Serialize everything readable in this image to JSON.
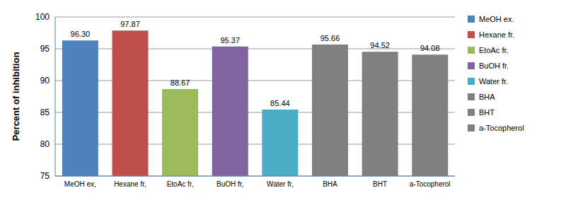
{
  "chart_data": {
    "type": "bar",
    "y_label": "Percent of inhibition",
    "categories": [
      "MeOH ex,",
      "Hexane fr,",
      "EtoAc fr,",
      "BuOH fr,",
      "Water fr,",
      "BHA",
      "BHT",
      "a-Tocopherol"
    ],
    "series": [
      {
        "name": "MeOH ex.",
        "color": "#4f81bd",
        "values": [
          96.3,
          null,
          null,
          null,
          null,
          null,
          null,
          null
        ]
      },
      {
        "name": "Hexane fr.",
        "color": "#c0504d",
        "values": [
          null,
          97.87,
          null,
          null,
          null,
          null,
          null,
          null
        ]
      },
      {
        "name": "EtoAc fr.",
        "color": "#9bbb59",
        "values": [
          null,
          null,
          88.67,
          null,
          null,
          null,
          null,
          null
        ]
      },
      {
        "name": "BuOH fr.",
        "color": "#8064a2",
        "values": [
          null,
          null,
          null,
          95.37,
          null,
          null,
          null,
          null
        ]
      },
      {
        "name": "Water fr.",
        "color": "#4bacc6",
        "values": [
          null,
          null,
          null,
          null,
          85.44,
          null,
          null,
          null
        ]
      },
      {
        "name": "BHA",
        "color": "#808080",
        "values": [
          null,
          null,
          null,
          null,
          null,
          95.66,
          null,
          null
        ]
      },
      {
        "name": "BHT",
        "color": "#808080",
        "values": [
          null,
          null,
          null,
          null,
          null,
          null,
          94.52,
          null
        ]
      },
      {
        "name": "a-Tocopherol",
        "color": "#808080",
        "values": [
          null,
          null,
          null,
          null,
          null,
          null,
          null,
          94.08
        ]
      }
    ],
    "value_labels": [
      "96.30",
      "97.87",
      "88.67",
      "95.37",
      "85.44",
      "95.66",
      "94.52",
      "94.08"
    ],
    "data_labels": true,
    "ylim": [
      75,
      100
    ],
    "yticks": [
      75,
      80,
      85,
      90,
      95,
      100
    ],
    "grid": true,
    "legend": "right"
  }
}
